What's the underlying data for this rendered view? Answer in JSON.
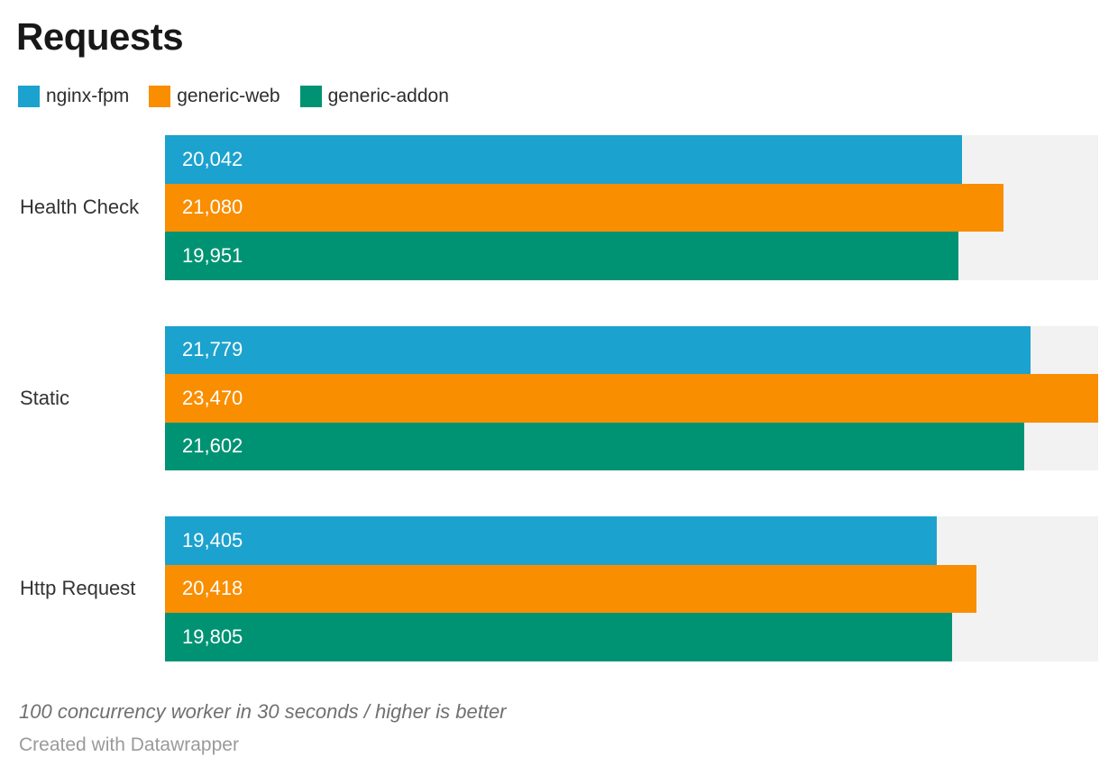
{
  "title": "Requests",
  "legend": [
    {
      "label": "nginx-fpm",
      "color": "#1ca2ce",
      "icon": "swatch-square"
    },
    {
      "label": "generic-web",
      "color": "#f98e00",
      "icon": "swatch-square"
    },
    {
      "label": "generic-addon",
      "color": "#009373",
      "icon": "swatch-square"
    }
  ],
  "chart_data": {
    "type": "bar",
    "orientation": "horizontal",
    "title": "Requests",
    "categories": [
      "Health Check",
      "Static",
      "Http Request"
    ],
    "series": [
      {
        "name": "nginx-fpm",
        "color": "#1ca2ce",
        "values": [
          20042,
          21779,
          19405
        ],
        "labels": [
          "20,042",
          "21,779",
          "19,405"
        ]
      },
      {
        "name": "generic-web",
        "color": "#f98e00",
        "values": [
          21080,
          23470,
          20418
        ],
        "labels": [
          "21,080",
          "23,470",
          "20,418"
        ]
      },
      {
        "name": "generic-addon",
        "color": "#009373",
        "values": [
          19951,
          21602,
          19805
        ],
        "labels": [
          "19,951",
          "21,602",
          "19,805"
        ]
      }
    ],
    "xlim": [
      0,
      23470
    ],
    "xmax": 23470,
    "track_color": "#f2f2f2",
    "grid": false,
    "legend_position": "top",
    "value_labels_inside": true
  },
  "footer": {
    "note": "100 concurrency worker in 30 seconds / higher is better",
    "attribution": "Created with Datawrapper"
  }
}
